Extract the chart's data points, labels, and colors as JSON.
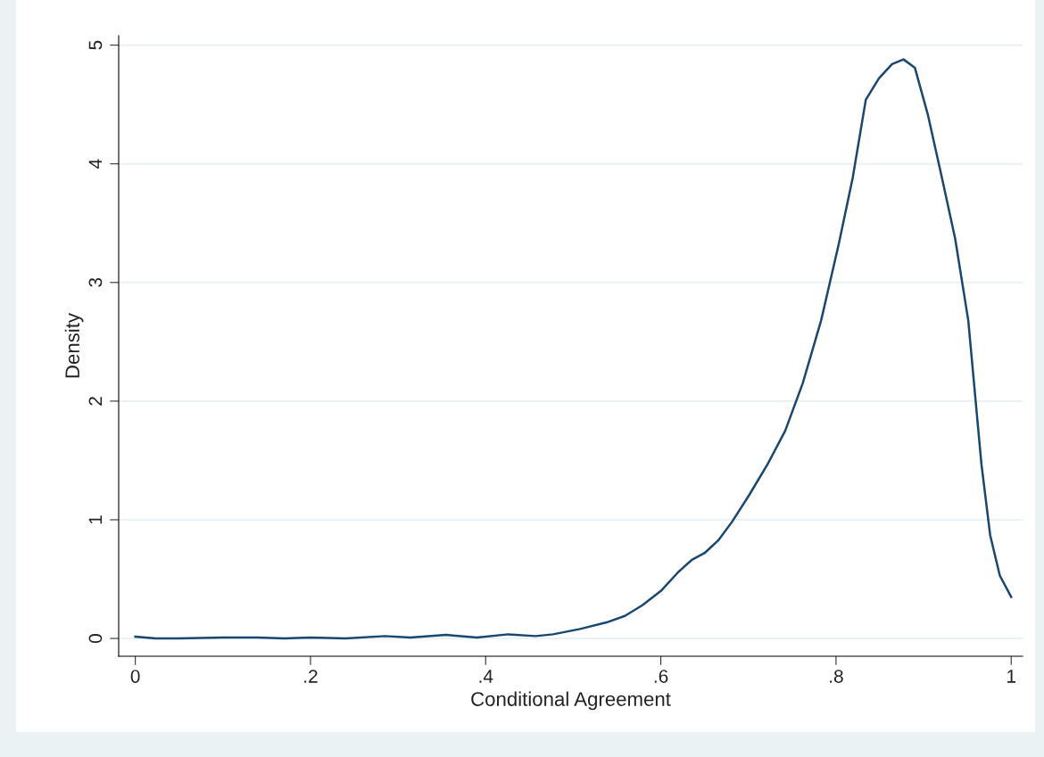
{
  "chart_data": {
    "type": "line",
    "xlabel": "Conditional Agreement",
    "ylabel": "Density",
    "x": [
      0.0,
      0.023,
      0.049,
      0.1,
      0.14,
      0.17,
      0.2,
      0.24,
      0.285,
      0.314,
      0.355,
      0.39,
      0.426,
      0.457,
      0.477,
      0.508,
      0.538,
      0.559,
      0.579,
      0.6,
      0.62,
      0.635,
      0.65,
      0.666,
      0.681,
      0.701,
      0.722,
      0.742,
      0.762,
      0.783,
      0.803,
      0.819,
      0.834,
      0.849,
      0.864,
      0.877,
      0.89,
      0.905,
      0.921,
      0.936,
      0.951,
      0.966,
      0.976,
      0.987,
      1.0
    ],
    "series": [
      {
        "color": "#1a476f",
        "values": [
          0.015,
          0.0,
          0.0,
          0.008,
          0.008,
          0.0,
          0.008,
          0.0,
          0.02,
          0.008,
          0.03,
          0.008,
          0.035,
          0.02,
          0.035,
          0.08,
          0.135,
          0.19,
          0.28,
          0.4,
          0.56,
          0.66,
          0.72,
          0.83,
          0.98,
          1.21,
          1.47,
          1.75,
          2.15,
          2.68,
          3.32,
          3.88,
          4.54,
          4.72,
          4.84,
          4.88,
          4.81,
          4.41,
          3.88,
          3.37,
          2.68,
          1.47,
          0.87,
          0.53,
          0.35
        ]
      }
    ],
    "xlim": [
      -0.019,
      1.013
    ],
    "ylim": [
      -0.15,
      5.08
    ],
    "xticks": [
      0,
      {
        "value": 0.2,
        "label": ".2"
      },
      {
        "value": 0.4,
        "label": ".4"
      },
      {
        "value": 0.6,
        "label": ".6"
      },
      {
        "value": 0.8,
        "label": ".8"
      },
      1
    ],
    "yticks": [
      0,
      1,
      2,
      3,
      4,
      5
    ],
    "grid": "y",
    "legend": false,
    "marker": "none",
    "line_style": "solid"
  }
}
